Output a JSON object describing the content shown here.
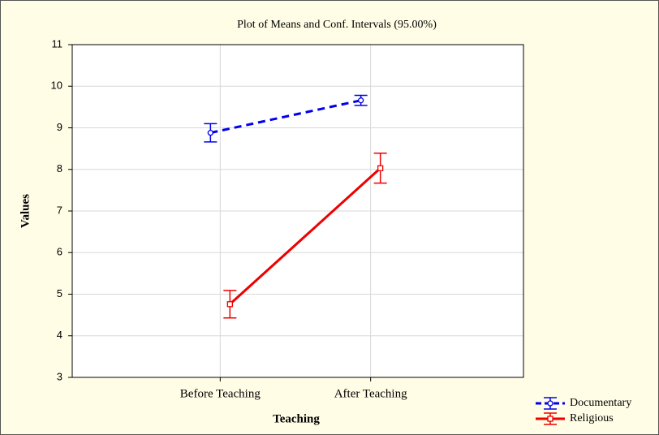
{
  "chart_data": {
    "type": "line",
    "title": "Plot of Means and Conf. Intervals (95.00%)",
    "x_label": "Teaching",
    "y_label": "Values",
    "categories": [
      "Before Teaching",
      "After Teaching"
    ],
    "series": [
      {
        "name": "Documentary",
        "color": "#0000ee",
        "line_style": "dashed",
        "marker": "circle",
        "values": [
          8.88,
          9.66
        ],
        "errors": [
          0.22,
          0.12
        ]
      },
      {
        "name": "Religious",
        "color": "#ee0000",
        "line_style": "solid",
        "marker": "square",
        "values": [
          4.76,
          8.03
        ],
        "errors": [
          0.33,
          0.36
        ]
      }
    ],
    "ylim": [
      3,
      11
    ],
    "yticks": [
      3,
      4,
      5,
      6,
      7,
      8,
      9,
      10,
      11
    ],
    "grid": true,
    "legend": "bottom-right"
  }
}
